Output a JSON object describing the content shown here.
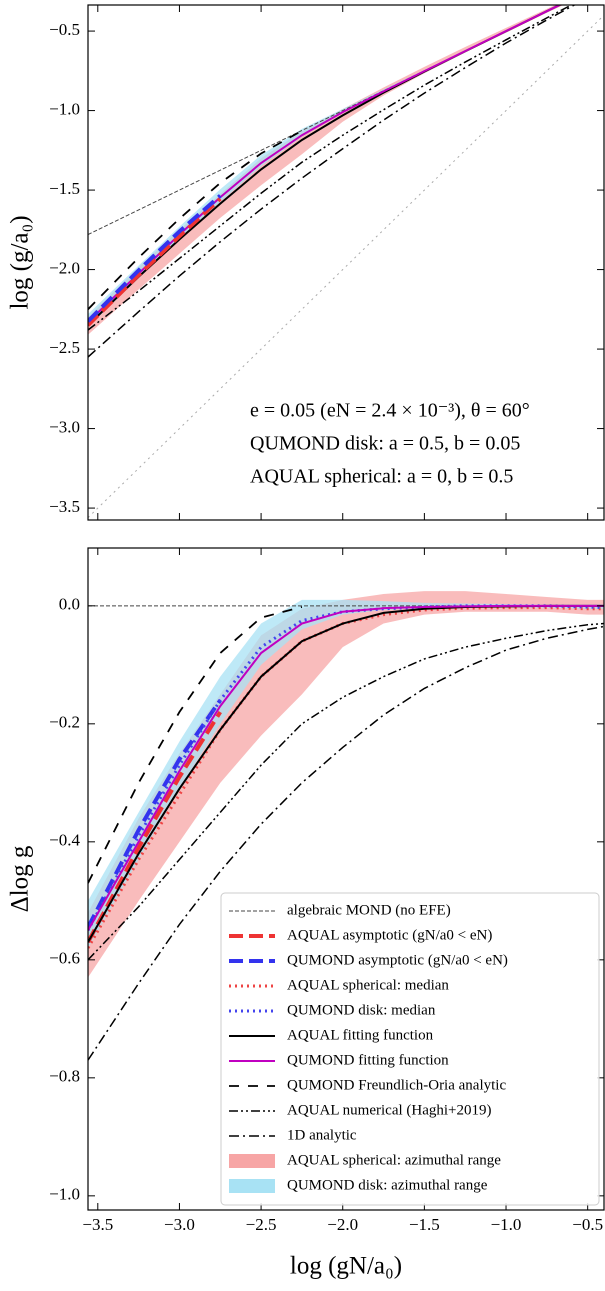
{
  "chart_data": [
    {
      "type": "line",
      "xlim": [
        -3.56,
        -0.4
      ],
      "ylim": [
        -3.575,
        -0.336
      ],
      "xticks": [
        -3.5,
        -3.0,
        -2.5,
        -2.0,
        -1.5,
        -1.0,
        -0.5
      ],
      "yticks": [
        {
          "value": -0.5,
          "label": "−0.5"
        },
        {
          "value": -1.0,
          "label": "−1.0"
        },
        {
          "value": -1.5,
          "label": "−1.5"
        },
        {
          "value": -2.0,
          "label": "−2.0"
        },
        {
          "value": -2.5,
          "label": "−2.5"
        },
        {
          "value": -3.0,
          "label": "−3.0"
        },
        {
          "value": -3.5,
          "label": "−3.5"
        }
      ],
      "y_label": "log (g/a₀)",
      "annotations": [
        "e = 0.05 (eN = 2.4 × 10⁻³), θ = 60°",
        "QUMOND disk: a = 0.5, b = 0.05",
        "AQUAL spherical: a = 0, b = 0.5"
      ],
      "x": [
        -3.56,
        -3.25,
        -3.0,
        -2.75,
        -2.5,
        -2.25,
        -2.0,
        -1.75,
        -1.5,
        -1.25,
        -1.0,
        -0.75,
        -0.5,
        -0.4
      ],
      "series": [
        {
          "kind": "band",
          "color": "#f7a5a5",
          "lower": [
            -2.41,
            -2.125,
            -1.9,
            -1.675,
            -1.47,
            -1.275,
            -1.07,
            -0.905,
            -0.765,
            -0.635,
            -0.51,
            -0.385,
            -0.265,
            -0.215
          ],
          "upper": [
            -2.3,
            -1.985,
            -1.75,
            -1.525,
            -1.3,
            -1.13,
            -0.99,
            -0.855,
            -0.725,
            -0.6,
            -0.48,
            -0.36,
            -0.24,
            -0.19
          ]
        },
        {
          "kind": "band",
          "color": "#a8e2f4",
          "lower": [
            -2.36,
            -2.055,
            -1.81,
            -1.575,
            -1.35,
            -1.165,
            -1.015,
            -0.882,
            -0.754,
            -0.627,
            -0.502,
            -0.378,
            -0.255,
            -0.205
          ],
          "upper": [
            -2.28,
            -1.975,
            -1.73,
            -1.495,
            -1.28,
            -1.115,
            -0.99,
            -0.867,
            -0.745,
            -0.621,
            -0.497,
            -0.373,
            -0.248,
            -0.198
          ]
        },
        {
          "color": "#aaaaaa",
          "style": "dotted",
          "width": 1,
          "x": [
            -3.56,
            -0.4
          ],
          "values": [
            -3.56,
            -0.4
          ]
        },
        {
          "color": "#444444",
          "style": "finedash",
          "width": 1,
          "x": [
            -3.56,
            -0.4
          ],
          "values": [
            -1.78,
            -0.2
          ]
        },
        {
          "color": "#000000",
          "style": "dashdot",
          "width": 1.5,
          "values": [
            -2.55,
            -2.265,
            -2.04,
            -1.825,
            -1.62,
            -1.425,
            -1.24,
            -1.06,
            -0.89,
            -0.73,
            -0.575,
            -0.43,
            -0.29,
            -0.235
          ]
        },
        {
          "color": "#000000",
          "style": "dashdotdot",
          "width": 1.5,
          "values": [
            -2.38,
            -2.135,
            -1.93,
            -1.725,
            -1.52,
            -1.325,
            -1.155,
            -0.995,
            -0.84,
            -0.695,
            -0.555,
            -0.417,
            -0.282,
            -0.23
          ]
        },
        {
          "color": "#000000",
          "style": "loosedash",
          "width": 1.8,
          "values": [
            -2.25,
            -1.925,
            -1.68,
            -1.455,
            -1.27,
            -1.127,
            null,
            null,
            null,
            null,
            null,
            null,
            null,
            null
          ]
        },
        {
          "color": "#000000",
          "style": "solid",
          "width": 2,
          "values": [
            -2.35,
            -2.045,
            -1.81,
            -1.585,
            -1.37,
            -1.185,
            -1.03,
            -0.887,
            -0.755,
            -0.627,
            -0.501,
            -0.375,
            -0.25,
            -0.2
          ]
        },
        {
          "color": "#c000c0",
          "style": "solid",
          "width": 2,
          "values": [
            -2.33,
            -2.025,
            -1.78,
            -1.545,
            -1.33,
            -1.155,
            -1.01,
            -0.879,
            -0.752,
            -0.626,
            -0.5,
            -0.375,
            -0.25,
            -0.2
          ]
        },
        {
          "color": "#ee3333",
          "style": "dashed",
          "width": 4,
          "values": [
            -2.35,
            -2.035,
            -1.79,
            -1.555,
            null,
            null,
            null,
            null,
            null,
            null,
            null,
            null,
            null,
            null
          ]
        },
        {
          "color": "#3333ee",
          "style": "dashed",
          "width": 4,
          "values": [
            -2.325,
            -2.005,
            -1.76,
            -1.535,
            null,
            null,
            null,
            null,
            null,
            null,
            null,
            null,
            null,
            null
          ]
        }
      ]
    },
    {
      "type": "line",
      "xlim": [
        -3.56,
        -0.4
      ],
      "ylim": [
        -1.024,
        0.098
      ],
      "xticks": [
        {
          "value": -3.5,
          "label": "−3.5"
        },
        {
          "value": -3.0,
          "label": "−3.0"
        },
        {
          "value": -2.5,
          "label": "−2.5"
        },
        {
          "value": -2.0,
          "label": "−2.0"
        },
        {
          "value": -1.5,
          "label": "−1.5"
        },
        {
          "value": -1.0,
          "label": "−1.0"
        },
        {
          "value": -0.5,
          "label": "−0.5"
        }
      ],
      "yticks": [
        {
          "value": 0.0,
          "label": "0.0"
        },
        {
          "value": -0.2,
          "label": "−0.2"
        },
        {
          "value": -0.4,
          "label": "−0.4"
        },
        {
          "value": -0.6,
          "label": "−0.6"
        },
        {
          "value": -0.8,
          "label": "−0.8"
        },
        {
          "value": -1.0,
          "label": "−1.0"
        }
      ],
      "y_label": "Δlog g",
      "x_label": "log (gN/a₀)",
      "legend": "lower right",
      "x": [
        -3.56,
        -3.25,
        -3.0,
        -2.75,
        -2.5,
        -2.25,
        -2.0,
        -1.75,
        -1.5,
        -1.25,
        -1.0,
        -0.75,
        -0.5,
        -0.4
      ],
      "series": [
        {
          "name": "algebraic MOND (no EFE)",
          "color": "#444444",
          "style": "finedash",
          "width": 1,
          "x": [
            -3.56,
            -0.4
          ],
          "values": [
            0,
            0
          ]
        },
        {
          "name": "AQUAL asymptotic (gN/a0 < eN)",
          "color": "#ee3333",
          "style": "dashed",
          "width": 4,
          "values": [
            -0.57,
            -0.41,
            -0.29,
            -0.18,
            null,
            null,
            null,
            null,
            null,
            null,
            null,
            null,
            null,
            null
          ]
        },
        {
          "name": "QUMOND asymptotic (gN/a0 < eN)",
          "color": "#3333ee",
          "style": "dashed",
          "width": 4,
          "values": [
            -0.545,
            -0.38,
            -0.26,
            -0.16,
            null,
            null,
            null,
            null,
            null,
            null,
            null,
            null,
            null,
            null
          ]
        },
        {
          "name": "AQUAL spherical: median",
          "color": "#ee4444",
          "style": "dotted",
          "width": 3,
          "values": [
            -0.58,
            -0.43,
            -0.32,
            -0.21,
            -0.12,
            -0.06,
            -0.03,
            -0.015,
            -0.007,
            -0.004,
            -0.003,
            -0.003,
            -0.005,
            -0.005
          ]
        },
        {
          "name": "QUMOND disk: median",
          "color": "#4444ee",
          "style": "dotted",
          "width": 3,
          "values": [
            -0.55,
            -0.39,
            -0.27,
            -0.16,
            -0.07,
            -0.025,
            -0.01,
            -0.005,
            -0.002,
            0,
            0,
            0,
            -0.002,
            -0.003
          ]
        },
        {
          "name": "AQUAL fitting function",
          "color": "#000000",
          "style": "solid",
          "width": 2,
          "values": [
            -0.57,
            -0.42,
            -0.31,
            -0.21,
            -0.12,
            -0.06,
            -0.03,
            -0.012,
            -0.005,
            -0.002,
            -0.001,
            0,
            0,
            0
          ]
        },
        {
          "name": "QUMOND fitting function",
          "color": "#c000c0",
          "style": "solid",
          "width": 2,
          "values": [
            -0.55,
            -0.4,
            -0.28,
            -0.17,
            -0.08,
            -0.03,
            -0.01,
            -0.004,
            -0.002,
            -0.001,
            0,
            0,
            0,
            0
          ]
        },
        {
          "name": "QUMOND Freundlich-Oria analytic",
          "color": "#000000",
          "style": "loosedash",
          "width": 1.8,
          "values": [
            -0.47,
            -0.3,
            -0.18,
            -0.08,
            -0.02,
            -0.002,
            null,
            null,
            null,
            null,
            null,
            null,
            null,
            null
          ]
        },
        {
          "name": "AQUAL numerical (Haghi+2019)",
          "color": "#000000",
          "style": "dashdotdot",
          "width": 1.5,
          "values": [
            -0.6,
            -0.51,
            -0.43,
            -0.35,
            -0.27,
            -0.2,
            -0.155,
            -0.12,
            -0.09,
            -0.07,
            -0.055,
            -0.042,
            -0.032,
            -0.03
          ]
        },
        {
          "name": "1D analytic",
          "color": "#000000",
          "style": "dashdot",
          "width": 1.5,
          "values": [
            -0.77,
            -0.64,
            -0.54,
            -0.45,
            -0.37,
            -0.3,
            -0.24,
            -0.185,
            -0.14,
            -0.105,
            -0.075,
            -0.055,
            -0.04,
            -0.035
          ]
        },
        {
          "name": "AQUAL spherical: azimuthal range",
          "kind": "band",
          "color": "#f7a5a5",
          "lower": [
            -0.63,
            -0.5,
            -0.4,
            -0.3,
            -0.22,
            -0.15,
            -0.07,
            -0.03,
            -0.015,
            -0.01,
            -0.01,
            -0.01,
            -0.015,
            -0.015
          ],
          "upper": [
            -0.52,
            -0.36,
            -0.25,
            -0.15,
            -0.05,
            -0.005,
            0.01,
            0.02,
            0.025,
            0.025,
            0.02,
            0.015,
            0.01,
            0.01
          ]
        },
        {
          "name": "QUMOND disk: azimuthal range",
          "kind": "band",
          "color": "#a8e2f4",
          "lower": [
            -0.58,
            -0.43,
            -0.31,
            -0.2,
            -0.1,
            -0.04,
            -0.015,
            -0.007,
            -0.004,
            -0.002,
            -0.002,
            -0.003,
            -0.005,
            -0.005
          ],
          "upper": [
            -0.5,
            -0.35,
            -0.23,
            -0.12,
            -0.03,
            0.01,
            0.01,
            0.008,
            0.005,
            0.004,
            0.003,
            0.002,
            0.002,
            0.002
          ]
        }
      ]
    }
  ]
}
